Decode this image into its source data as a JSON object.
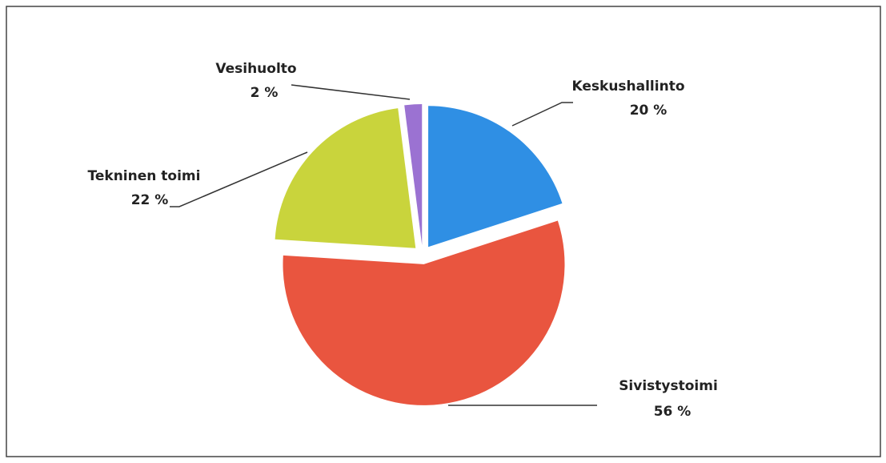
{
  "chart_data": {
    "type": "pie",
    "categories": [
      "Keskushallinto",
      "Sivistystoimi",
      "Tekninen toimi",
      "Vesihuolto"
    ],
    "values": [
      20,
      56,
      22,
      2
    ],
    "value_labels": [
      "20 %",
      "56 %",
      "22 %",
      "2 %"
    ],
    "colors": [
      "#2f8fe4",
      "#e9553f",
      "#c9d43c",
      "#9b72d2"
    ]
  }
}
